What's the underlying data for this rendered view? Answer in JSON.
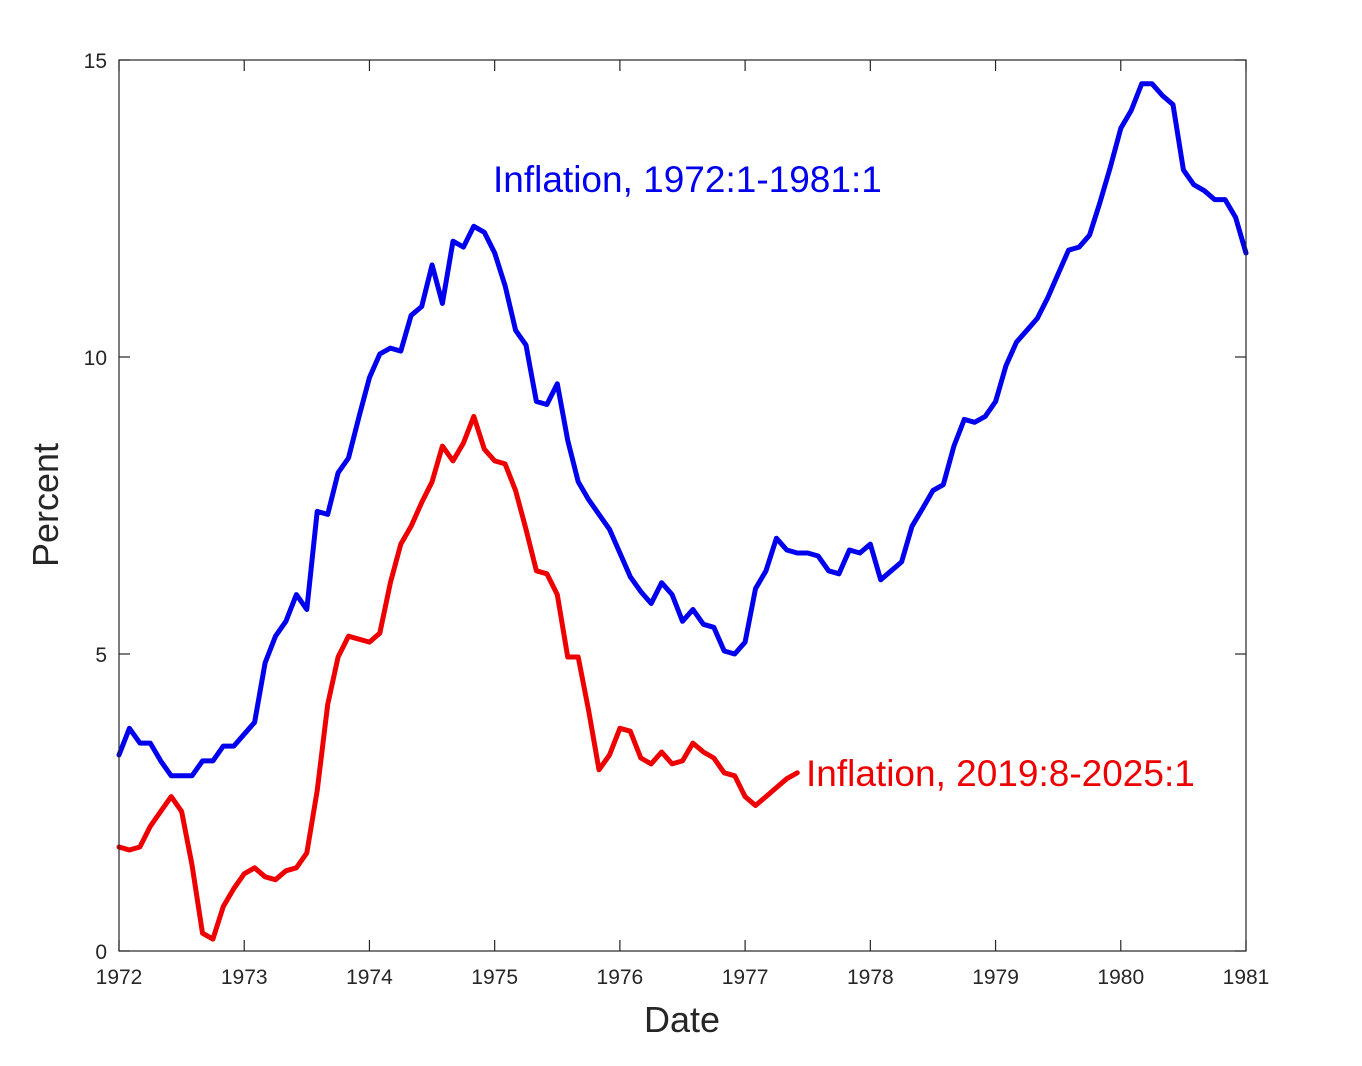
{
  "chart_data": {
    "type": "line",
    "title": "",
    "xlabel": "Date",
    "ylabel": "Percent",
    "xlim": [
      1972,
      1981
    ],
    "ylim": [
      0,
      15
    ],
    "x_ticks": [
      1972,
      1973,
      1974,
      1975,
      1976,
      1977,
      1978,
      1979,
      1980,
      1981
    ],
    "x_tick_labels": [
      "1972",
      "1973",
      "1974",
      "1975",
      "1976",
      "1977",
      "1978",
      "1979",
      "1980",
      "1981"
    ],
    "y_ticks": [
      0,
      5,
      10,
      15
    ],
    "y_tick_labels": [
      "0",
      "5",
      "10",
      "15"
    ],
    "grid": false,
    "series": [
      {
        "name": "Inflation, 1972:1-1981:1",
        "color": "#0000ee",
        "x": [
          1972.0,
          1972.083,
          1972.167,
          1972.25,
          1972.333,
          1972.417,
          1972.5,
          1972.583,
          1972.667,
          1972.75,
          1972.833,
          1972.917,
          1973.0,
          1973.083,
          1973.167,
          1973.25,
          1973.333,
          1973.417,
          1973.5,
          1973.583,
          1973.667,
          1973.75,
          1973.833,
          1973.917,
          1974.0,
          1974.083,
          1974.167,
          1974.25,
          1974.333,
          1974.417,
          1974.5,
          1974.583,
          1974.667,
          1974.75,
          1974.833,
          1974.917,
          1975.0,
          1975.083,
          1975.167,
          1975.25,
          1975.333,
          1975.417,
          1975.5,
          1975.583,
          1975.667,
          1975.75,
          1975.833,
          1975.917,
          1976.0,
          1976.083,
          1976.167,
          1976.25,
          1976.333,
          1976.417,
          1976.5,
          1976.583,
          1976.667,
          1976.75,
          1976.833,
          1976.917,
          1977.0,
          1977.083,
          1977.167,
          1977.25,
          1977.333,
          1977.417,
          1977.5,
          1977.583,
          1977.667,
          1977.75,
          1977.833,
          1977.917,
          1978.0,
          1978.083,
          1978.167,
          1978.25,
          1978.333,
          1978.417,
          1978.5,
          1978.583,
          1978.667,
          1978.75,
          1978.833,
          1978.917,
          1979.0,
          1979.083,
          1979.167,
          1979.25,
          1979.333,
          1979.417,
          1979.5,
          1979.583,
          1979.667,
          1979.75,
          1979.833,
          1979.917,
          1980.0,
          1980.083,
          1980.167,
          1980.25,
          1980.333,
          1980.417,
          1980.5,
          1980.583,
          1980.667,
          1980.75,
          1980.833,
          1980.917,
          1981.0
        ],
        "values": [
          3.3,
          3.75,
          3.5,
          3.5,
          3.2,
          2.95,
          2.95,
          2.95,
          3.2,
          3.2,
          3.45,
          3.45,
          3.65,
          3.85,
          4.85,
          5.3,
          5.55,
          6.0,
          5.75,
          7.4,
          7.35,
          8.05,
          8.3,
          9.0,
          9.65,
          10.05,
          10.15,
          10.1,
          10.7,
          10.85,
          11.55,
          10.9,
          11.95,
          11.85,
          12.2,
          12.1,
          11.75,
          11.2,
          10.45,
          10.2,
          9.25,
          9.2,
          9.55,
          8.6,
          7.9,
          7.6,
          7.35,
          7.1,
          6.7,
          6.3,
          6.05,
          5.85,
          6.2,
          6.0,
          5.55,
          5.75,
          5.5,
          5.45,
          5.05,
          5.0,
          5.2,
          6.1,
          6.4,
          6.95,
          6.75,
          6.7,
          6.7,
          6.65,
          6.4,
          6.35,
          6.75,
          6.7,
          6.85,
          6.25,
          6.4,
          6.55,
          7.15,
          7.45,
          7.75,
          7.85,
          8.5,
          8.95,
          8.9,
          9.0,
          9.25,
          9.85,
          10.25,
          10.45,
          10.65,
          11.0,
          11.4,
          11.8,
          11.85,
          12.05,
          12.6,
          13.2,
          13.85,
          14.15,
          14.6,
          14.6,
          14.4,
          14.25,
          13.15,
          12.9,
          12.8,
          12.65,
          12.65,
          12.35,
          11.75
        ]
      },
      {
        "name": "Inflation, 2019:8-2025:1",
        "color": "#ee0000",
        "x": [
          1972.0,
          1972.083,
          1972.167,
          1972.25,
          1972.333,
          1972.417,
          1972.5,
          1972.583,
          1972.667,
          1972.75,
          1972.833,
          1972.917,
          1973.0,
          1973.083,
          1973.167,
          1973.25,
          1973.333,
          1973.417,
          1973.5,
          1973.583,
          1973.667,
          1973.75,
          1973.833,
          1973.917,
          1974.0,
          1974.083,
          1974.167,
          1974.25,
          1974.333,
          1974.417,
          1974.5,
          1974.583,
          1974.667,
          1974.75,
          1974.833,
          1974.917,
          1975.0,
          1975.083,
          1975.167,
          1975.25,
          1975.333,
          1975.417,
          1975.5,
          1975.583,
          1975.667,
          1975.75,
          1975.833,
          1975.917,
          1976.0,
          1976.083,
          1976.167,
          1976.25,
          1976.333,
          1976.417,
          1976.5,
          1976.583,
          1976.667,
          1976.75,
          1976.833,
          1976.917,
          1977.0,
          1977.083,
          1977.167,
          1977.25,
          1977.333,
          1977.417
        ],
        "values": [
          1.75,
          1.7,
          1.75,
          2.1,
          2.35,
          2.6,
          2.35,
          1.45,
          0.3,
          0.2,
          0.75,
          1.05,
          1.3,
          1.4,
          1.25,
          1.2,
          1.35,
          1.4,
          1.65,
          2.7,
          4.15,
          4.95,
          5.3,
          5.25,
          5.2,
          5.35,
          6.2,
          6.85,
          7.15,
          7.55,
          7.9,
          8.5,
          8.25,
          8.55,
          9.0,
          8.45,
          8.25,
          8.2,
          7.75,
          7.1,
          6.4,
          6.35,
          6.0,
          4.95,
          4.95,
          4.05,
          3.05,
          3.3,
          3.75,
          3.7,
          3.25,
          3.15,
          3.35,
          3.15,
          3.2,
          3.5,
          3.35,
          3.25,
          3.0,
          2.95,
          2.6,
          2.45,
          2.6,
          2.75,
          2.9,
          3.0
        ]
      }
    ]
  }
}
